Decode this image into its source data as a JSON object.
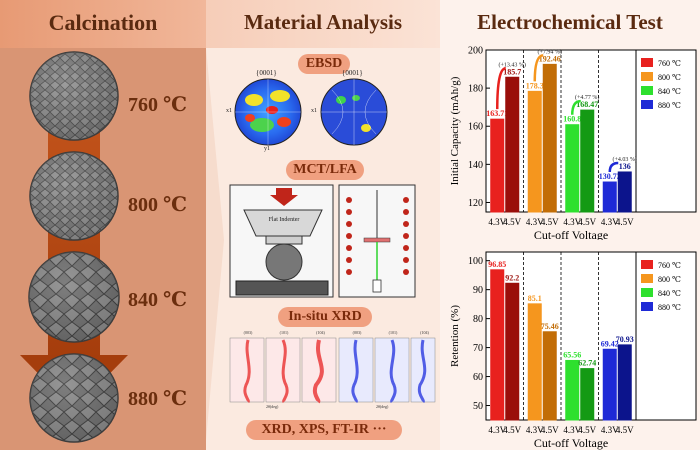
{
  "headers": {
    "calcination": "Calcination",
    "material_analysis": "Material Analysis",
    "electrochemical_test": "Electrochemical Test"
  },
  "calcination_temps": [
    "760 ℃",
    "800 ℃",
    "840 ℃",
    "880 ℃"
  ],
  "techniques": {
    "ebsd": "EBSD",
    "mct_lfa": "MCT/LFA",
    "insitu_xrd": "In-situ XRD",
    "other": "XRD, XPS, FT-IR ···"
  },
  "ebsd_pole_label": "{0001}",
  "ebsd_axis_labels": {
    "x1": "x1",
    "y1": "y1"
  },
  "indenter_label": "Flat Indenter",
  "xrd_peak_labels": [
    "(003)",
    "(101)",
    "(104)",
    "(003)",
    "(101)",
    "(104)"
  ],
  "xrd_xlabel": "2θ(deg)",
  "colors": {
    "760": "#e8211e",
    "800": "#f5961e",
    "840": "#2ee02e",
    "880": "#1e2ad6"
  },
  "chart_data": [
    {
      "type": "bar",
      "title": "",
      "ylabel": "Initial Capacity (mAh/g)",
      "xlabel": "Cut-off Voltage",
      "ylim": [
        115,
        200
      ],
      "yticks": [
        120,
        140,
        160,
        180,
        200
      ],
      "groups": [
        {
          "temp": "760 ℃",
          "categories": [
            "4.3V",
            "4.5V"
          ],
          "values": [
            163.71,
            185.7
          ],
          "labels": [
            "163.71",
            "185.7"
          ],
          "change": "(+13.43 %)"
        },
        {
          "temp": "800 ℃",
          "categories": [
            "4.3V",
            "4.5V"
          ],
          "values": [
            178.3,
            192.46
          ],
          "labels": [
            "178.3",
            "192.46"
          ],
          "change": "(+7.94 %)"
        },
        {
          "temp": "840 ℃",
          "categories": [
            "4.3V",
            "4.5V"
          ],
          "values": [
            160.8,
            168.47
          ],
          "labels": [
            "160.8",
            "168.47"
          ],
          "change": "(+4.77 %)"
        },
        {
          "temp": "880 ℃",
          "categories": [
            "4.3V",
            "4.5V"
          ],
          "values": [
            130.73,
            136
          ],
          "labels": [
            "130.73",
            "136"
          ],
          "change": "(+4.03 %)"
        }
      ],
      "legend": [
        "760 ℃",
        "800 ℃",
        "840 ℃",
        "880 ℃"
      ],
      "legend_position": "top-right"
    },
    {
      "type": "bar",
      "title": "",
      "ylabel": "Retention (%)",
      "xlabel": "Cut-off Voltage",
      "ylim": [
        45,
        103
      ],
      "yticks": [
        50,
        60,
        70,
        80,
        90,
        100
      ],
      "groups": [
        {
          "temp": "760 ℃",
          "categories": [
            "4.3V",
            "4.5V"
          ],
          "values": [
            96.85,
            92.2
          ],
          "labels": [
            "96.85",
            "92.2"
          ]
        },
        {
          "temp": "800 ℃",
          "categories": [
            "4.3V",
            "4.5V"
          ],
          "values": [
            85.1,
            75.46
          ],
          "labels": [
            "85.1",
            "75.46"
          ]
        },
        {
          "temp": "840 ℃",
          "categories": [
            "4.3V",
            "4.5V"
          ],
          "values": [
            65.56,
            62.74
          ],
          "labels": [
            "65.56",
            "62.74"
          ]
        },
        {
          "temp": "880 ℃",
          "categories": [
            "4.3V",
            "4.5V"
          ],
          "values": [
            69.42,
            70.93
          ],
          "labels": [
            "69.42",
            "70.93"
          ]
        }
      ],
      "legend": [
        "760 ℃",
        "800 ℃",
        "840 ℃",
        "880 ℃"
      ],
      "legend_position": "top-right"
    }
  ]
}
